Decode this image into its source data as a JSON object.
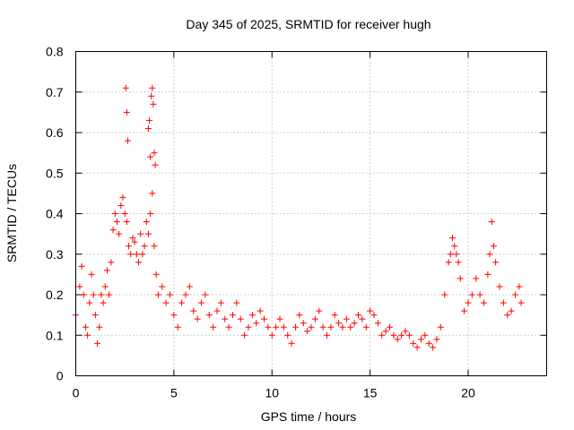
{
  "chart_data": {
    "type": "scatter",
    "title": "Day 345 of 2025, SRMTID for receiver hugh",
    "xlabel": "GPS time / hours",
    "ylabel": "SRMTID / TECUs",
    "xlim": [
      0,
      24
    ],
    "ylim": [
      0,
      0.8
    ],
    "xticks": [
      0,
      5,
      10,
      15,
      20
    ],
    "xtick_labels": [
      "0",
      "5",
      "10",
      "15",
      "20"
    ],
    "yticks": [
      0,
      0.1,
      0.2,
      0.3,
      0.4,
      0.5,
      0.6,
      0.7,
      0.8
    ],
    "ytick_labels": [
      "0",
      "0.1",
      "0.2",
      "0.3",
      "0.4",
      "0.5",
      "0.6",
      "0.7",
      "0.8"
    ],
    "grid": true,
    "marker": "+",
    "color": "#ff0000",
    "series": [
      {
        "name": "SRMTID",
        "x": [
          0.0,
          0.2,
          0.3,
          0.4,
          0.5,
          0.6,
          0.7,
          0.8,
          0.9,
          1.0,
          1.1,
          1.2,
          1.3,
          1.4,
          1.5,
          1.6,
          1.7,
          1.8,
          1.9,
          2.0,
          2.1,
          2.2,
          2.3,
          2.4,
          2.5,
          2.6,
          2.7,
          2.8,
          2.9,
          3.0,
          3.1,
          3.2,
          3.3,
          3.4,
          3.5,
          3.6,
          3.7,
          3.8,
          3.9,
          4.0,
          4.1,
          4.2,
          4.4,
          4.6,
          4.8,
          5.0,
          5.2,
          5.4,
          5.6,
          5.8,
          6.0,
          6.2,
          6.4,
          6.6,
          6.8,
          7.0,
          7.2,
          7.4,
          7.6,
          7.8,
          8.0,
          8.2,
          8.4,
          8.6,
          8.8,
          9.0,
          9.2,
          9.4,
          9.6,
          9.8,
          10.0,
          10.2,
          10.4,
          10.6,
          10.8,
          11.0,
          11.2,
          11.4,
          11.6,
          11.8,
          12.0,
          12.2,
          12.4,
          12.6,
          12.8,
          13.0,
          13.2,
          13.4,
          13.6,
          13.8,
          14.0,
          14.2,
          14.4,
          14.6,
          14.8,
          15.0,
          15.2,
          15.4,
          15.6,
          15.8,
          16.0,
          16.2,
          16.4,
          16.6,
          16.8,
          17.0,
          17.2,
          17.4,
          17.6,
          17.8,
          18.0,
          18.2,
          18.4,
          18.6,
          18.8,
          19.0,
          19.1,
          19.2,
          19.3,
          19.4,
          19.5,
          19.6,
          19.8,
          20.0,
          20.2,
          20.4,
          20.6,
          20.8,
          21.0,
          21.1,
          21.2,
          21.3,
          21.4,
          21.6,
          21.8,
          22.0,
          22.2,
          22.4,
          22.6,
          22.7
        ],
        "y": [
          0.15,
          0.22,
          0.27,
          0.2,
          0.12,
          0.1,
          0.18,
          0.25,
          0.2,
          0.15,
          0.08,
          0.12,
          0.2,
          0.18,
          0.22,
          0.26,
          0.2,
          0.28,
          0.36,
          0.4,
          0.38,
          0.35,
          0.42,
          0.44,
          0.4,
          0.38,
          0.32,
          0.3,
          0.34,
          0.33,
          0.3,
          0.28,
          0.35,
          0.3,
          0.32,
          0.38,
          0.35,
          0.4,
          0.45,
          0.32,
          0.25,
          0.2,
          0.22,
          0.18,
          0.2,
          0.15,
          0.12,
          0.18,
          0.2,
          0.22,
          0.16,
          0.14,
          0.18,
          0.2,
          0.15,
          0.12,
          0.16,
          0.18,
          0.14,
          0.12,
          0.15,
          0.18,
          0.14,
          0.1,
          0.12,
          0.15,
          0.13,
          0.16,
          0.14,
          0.12,
          0.1,
          0.12,
          0.14,
          0.12,
          0.1,
          0.08,
          0.12,
          0.15,
          0.13,
          0.11,
          0.12,
          0.14,
          0.16,
          0.12,
          0.1,
          0.12,
          0.15,
          0.13,
          0.12,
          0.14,
          0.12,
          0.13,
          0.15,
          0.14,
          0.12,
          0.16,
          0.15,
          0.13,
          0.1,
          0.11,
          0.12,
          0.1,
          0.09,
          0.1,
          0.11,
          0.1,
          0.08,
          0.07,
          0.09,
          0.1,
          0.08,
          0.07,
          0.09,
          0.12,
          0.2,
          0.28,
          0.3,
          0.34,
          0.32,
          0.3,
          0.28,
          0.24,
          0.16,
          0.18,
          0.2,
          0.24,
          0.2,
          0.18,
          0.25,
          0.3,
          0.38,
          0.32,
          0.28,
          0.22,
          0.18,
          0.15,
          0.16,
          0.2,
          0.22,
          0.18
        ],
        "outliers_x": [
          2.55,
          2.6,
          2.65,
          3.7,
          3.75,
          3.8,
          3.85,
          3.9,
          3.95,
          4.0,
          4.05
        ],
        "outliers_y": [
          0.71,
          0.65,
          0.58,
          0.61,
          0.63,
          0.54,
          0.69,
          0.71,
          0.67,
          0.55,
          0.52
        ]
      }
    ]
  }
}
